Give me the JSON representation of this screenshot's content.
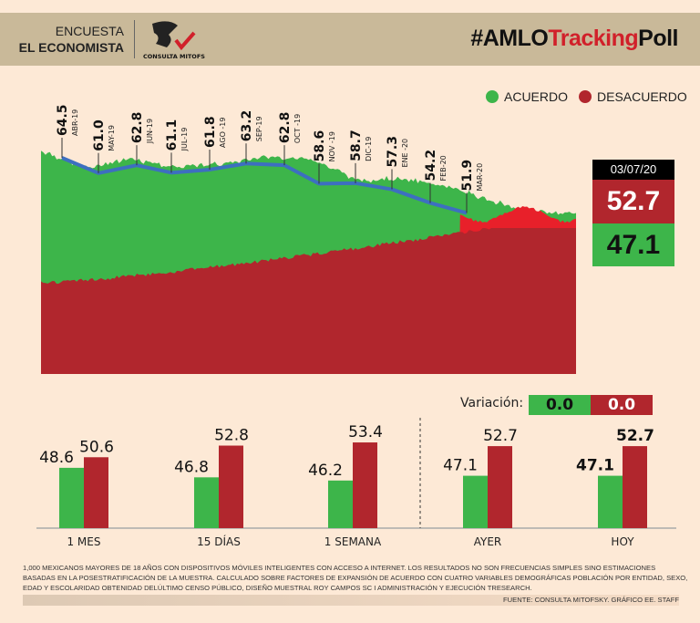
{
  "header": {
    "encuesta": "ENCUESTA",
    "publisher": "EL ECONOMISTA",
    "logo_text": "CONSULTA MITOFSKY",
    "hashtag_pre": "#AMLO",
    "hashtag_mid": "Tracking",
    "hashtag_post": "Poll"
  },
  "legend": {
    "agree": "ACUERDO",
    "disagree": "DESACUERDO"
  },
  "colors": {
    "agree": "#3db54a",
    "disagree": "#b1262d",
    "disagree_bright": "#e8202a",
    "line": "#3d6fc0",
    "header": "#c9b999"
  },
  "latest": {
    "date": "03/07/20",
    "disagree": "52.7",
    "agree": "47.1"
  },
  "variation": {
    "label": "Variación:",
    "agree": "0.0",
    "disagree": "0.0"
  },
  "chart_data": [
    {
      "type": "line",
      "series": [
        {
          "values": [
            64.5,
            61.0,
            62.8,
            61.1,
            61.8,
            63.2,
            62.8,
            58.6,
            58.7,
            57.3,
            54.2,
            51.9
          ]
        }
      ],
      "categories": [
        "ABR-19",
        "MAY-19",
        "JUN-19",
        "JUL-19",
        "AGO -19",
        "SEP-19",
        "OCT -19",
        "NOV -19",
        "DIC-19",
        "ENE -20",
        "FEB-20",
        "MAR-20"
      ],
      "labels": [
        "64.5",
        "61.0",
        "62.8",
        "61.1",
        "61.8",
        "63.2",
        "62.8",
        "58.6",
        "58.7",
        "57.3",
        "54.2",
        "51.9"
      ],
      "background": "area",
      "area_series": [
        "ACUERDO",
        "DESACUERDO"
      ]
    },
    {
      "type": "bar",
      "categories": [
        "1 MES",
        "15 DÍAS",
        "1 SEMANA",
        "AYER",
        "HOY"
      ],
      "series": [
        {
          "name": "ACUERDO",
          "values": [
            48.6,
            46.8,
            46.2,
            47.1,
            47.1
          ],
          "labels": [
            "48.6",
            "46.8",
            "46.2",
            "47.1",
            "47.1"
          ]
        },
        {
          "name": "DESACUERDO",
          "values": [
            50.6,
            52.8,
            53.4,
            52.7,
            52.7
          ],
          "labels": [
            "50.6",
            "52.8",
            "53.4",
            "52.7",
            "52.7"
          ]
        }
      ]
    }
  ],
  "footnote": "1,000 MEXICANOS MAYORES DE 18 AÑOS CON DISPOSITIVOS MÓVILES INTELIGENTES CON ACCESO A INTERNET. LOS RESULTADOS NO SON FRECUENCIAS SIMPLES SINO ESTIMACIONES BASADAS EN LA POSESTRATIFICACIÓN DE LA MUESTRA. CALCULADO SOBRE FACTORES DE EXPANSIÓN DE ACUERDO CON CUATRO VARIABLES DEMOGRÁFICAS POBLACIÓN POR ENTIDAD, SEXO, EDAD Y ESCOLARIDAD OBTENIDAD DELÚLTIMO CENSO PÚBLICO, DISEÑO MUESTRAL ROY CAMPOS SC I ADMINISTRACIÓN Y EJECUCIÓN TRESEARCH.",
  "source": "FUENTE: CONSULTA MITOFSKY. GRÁFICO EE. STAFF"
}
